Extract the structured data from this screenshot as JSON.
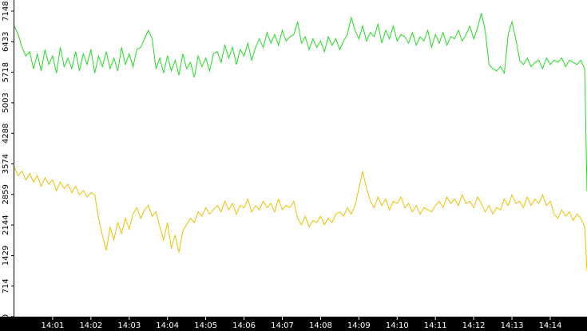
{
  "chart_data": {
    "type": "line",
    "x": [
      0,
      0.1,
      0.2,
      0.3,
      0.4,
      0.5,
      0.6,
      0.7,
      0.8,
      0.9,
      1,
      1.1,
      1.2,
      1.3,
      1.4,
      1.5,
      1.6,
      1.7,
      1.8,
      1.9,
      2,
      2.1,
      2.2,
      2.3,
      2.4,
      2.5,
      2.6,
      2.7,
      2.8,
      2.9,
      3,
      3.1,
      3.2,
      3.3,
      3.4,
      3.5,
      3.6,
      3.7,
      3.8,
      3.9,
      4,
      4.1,
      4.2,
      4.3,
      4.4,
      4.5,
      4.6,
      4.7,
      4.8,
      4.9,
      5,
      5.1,
      5.2,
      5.3,
      5.4,
      5.5,
      5.6,
      5.7,
      5.8,
      5.9,
      6,
      6.1,
      6.2,
      6.3,
      6.4,
      6.5,
      6.6,
      6.7,
      6.8,
      6.9,
      7,
      7.1,
      7.2,
      7.3,
      7.4,
      7.5,
      7.6,
      7.7,
      7.8,
      7.9,
      8,
      8.1,
      8.2,
      8.3,
      8.4,
      8.5,
      8.6,
      8.7,
      8.8,
      8.9,
      9,
      9.1,
      9.2,
      9.3,
      9.4,
      9.5,
      9.6,
      9.7,
      9.8,
      9.9,
      10,
      10.1,
      10.2,
      10.3,
      10.4,
      10.5,
      10.6,
      10.7,
      10.8,
      10.9,
      11,
      11.1,
      11.2,
      11.3,
      11.4,
      11.5,
      11.6,
      11.7,
      11.8,
      11.9,
      12,
      12.1,
      12.2,
      12.3,
      12.4,
      12.5,
      12.6,
      12.7,
      12.8,
      12.9,
      13,
      13.1,
      13.2,
      13.3,
      13.4,
      13.5,
      13.6,
      13.7,
      13.8,
      13.9,
      14,
      14.1,
      14.2,
      14.3,
      14.4,
      14.5,
      14.6,
      14.7,
      14.8,
      14.9,
      14.96
    ],
    "series": [
      {
        "color": "#22dd22",
        "values": [
          6800,
          6600,
          6300,
          6100,
          6200,
          5800,
          6150,
          5750,
          6250,
          5900,
          6100,
          5700,
          6300,
          5850,
          6050,
          5800,
          6200,
          5750,
          6150,
          5900,
          6250,
          5700,
          6100,
          5850,
          6200,
          5800,
          6050,
          5750,
          6300,
          5900,
          6150,
          5850,
          6250,
          6300,
          6500,
          6700,
          6500,
          5800,
          6050,
          5700,
          6100,
          5750,
          6000,
          5650,
          6150,
          5800,
          5950,
          5600,
          6100,
          5850,
          6050,
          5750,
          6150,
          6200,
          5950,
          6350,
          6050,
          6300,
          5900,
          6250,
          6100,
          6400,
          6000,
          6300,
          6500,
          6300,
          6650,
          6400,
          6600,
          6350,
          6700,
          6450,
          6550,
          6600,
          6900,
          6400,
          6550,
          6250,
          6500,
          6300,
          6450,
          6200,
          6550,
          6350,
          6500,
          6250,
          6450,
          6600,
          7000,
          6700,
          6500,
          6800,
          6450,
          6650,
          6550,
          6850,
          6400,
          6700,
          6500,
          6800,
          6450,
          6600,
          6550,
          6400,
          6650,
          6350,
          6550,
          6450,
          6700,
          6300,
          6600,
          6400,
          6650,
          6350,
          6550,
          6500,
          6700,
          6450,
          6600,
          6800,
          6500,
          6750,
          7100,
          6700,
          5900,
          5800,
          5750,
          5850,
          5700,
          6600,
          6900,
          6500,
          6000,
          5900,
          6050,
          5850,
          5950,
          6000,
          5800,
          6050,
          5900,
          6000,
          5950,
          6050,
          5850,
          6000,
          5950,
          5900,
          6000,
          5800,
          2930
        ]
      },
      {
        "color": "#f0c000",
        "values": [
          3500,
          3300,
          3400,
          3200,
          3350,
          3150,
          3300,
          3050,
          3250,
          3100,
          3200,
          2950,
          3150,
          3000,
          3100,
          2900,
          3050,
          2850,
          2950,
          2800,
          2900,
          2850,
          2300,
          1900,
          1550,
          2100,
          1800,
          2200,
          1950,
          2300,
          2050,
          2400,
          2550,
          2300,
          2500,
          2600,
          2350,
          2450,
          2100,
          1800,
          2200,
          1600,
          1900,
          1500,
          2000,
          2150,
          2300,
          2200,
          2450,
          2350,
          2550,
          2400,
          2500,
          2600,
          2450,
          2700,
          2500,
          2650,
          2400,
          2600,
          2550,
          2750,
          2450,
          2600,
          2500,
          2700,
          2550,
          2650,
          2450,
          2750,
          2500,
          2600,
          2550,
          2700,
          2300,
          2150,
          2350,
          2100,
          2250,
          2200,
          2350,
          2150,
          2300,
          2200,
          2400,
          2450,
          2350,
          2550,
          2400,
          2600,
          3000,
          3400,
          3000,
          2700,
          2550,
          2800,
          2600,
          2750,
          2500,
          2700,
          2650,
          2800,
          2550,
          2650,
          2450,
          2600,
          2400,
          2550,
          2500,
          2450,
          2600,
          2700,
          2550,
          2800,
          2650,
          2750,
          2600,
          2850,
          2650,
          2700,
          2550,
          2800,
          2650,
          2450,
          2600,
          2400,
          2550,
          2500,
          2750,
          2600,
          2850,
          2650,
          2700,
          2550,
          2800,
          2600,
          2750,
          2650,
          2850,
          2600,
          2700,
          2400,
          2300,
          2500,
          2350,
          2450,
          2250,
          2400,
          2300,
          2100,
          1060
        ]
      }
    ],
    "xlim": [
      0,
      14.96
    ],
    "xticks": [
      {
        "value": 1,
        "label": "14:01"
      },
      {
        "value": 2,
        "label": "14:02"
      },
      {
        "value": 3,
        "label": "14:03"
      },
      {
        "value": 4,
        "label": "14:04"
      },
      {
        "value": 5,
        "label": "14:05"
      },
      {
        "value": 6,
        "label": "14:06"
      },
      {
        "value": 7,
        "label": "14:07"
      },
      {
        "value": 8,
        "label": "14:08"
      },
      {
        "value": 9,
        "label": "14:09"
      },
      {
        "value": 10,
        "label": "14:10"
      },
      {
        "value": 11,
        "label": "14:11"
      },
      {
        "value": 12,
        "label": "14:12"
      },
      {
        "value": 13,
        "label": "14:13"
      },
      {
        "value": 14,
        "label": "14:14"
      }
    ],
    "ylim": [
      0,
      7409
    ],
    "yticks": [
      0,
      714,
      1429,
      2144,
      2859,
      3574,
      4288,
      5003,
      5718,
      6433,
      7148
    ]
  }
}
